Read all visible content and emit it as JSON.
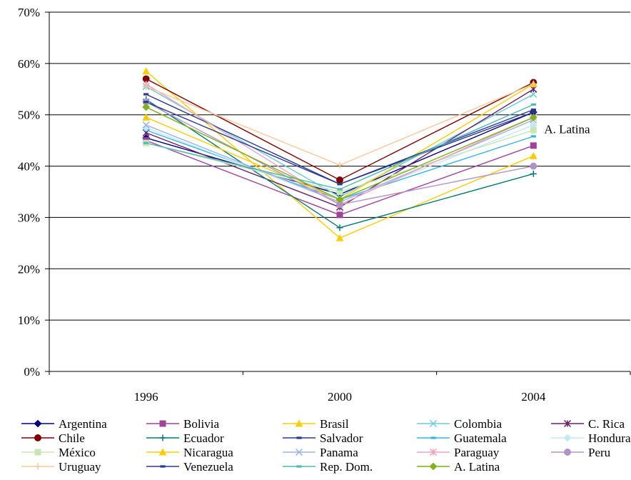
{
  "chart_data": {
    "type": "line",
    "categories": [
      "1996",
      "2000",
      "2004"
    ],
    "ylim": [
      0,
      70
    ],
    "yticks": [
      "0%",
      "10%",
      "20%",
      "30%",
      "40%",
      "50%",
      "60%",
      "70%"
    ],
    "grid": true,
    "legend_position": "bottom",
    "annotation": "A. Latina",
    "series": [
      {
        "name": "Argentina",
        "values": [
          45.5,
          34.5,
          50.5
        ],
        "color": "#000080",
        "marker": "diamond"
      },
      {
        "name": "Bolivia",
        "values": [
          45,
          30.5,
          44
        ],
        "color": "#a0449a",
        "marker": "square"
      },
      {
        "name": "Brasil",
        "values": [
          58.5,
          26,
          42
        ],
        "color": "#ffcc00",
        "marker": "triangle"
      },
      {
        "name": "Colombia",
        "values": [
          55.5,
          34,
          54
        ],
        "color": "#6ccbd9",
        "marker": "x"
      },
      {
        "name": "C. Rica",
        "values": [
          46.5,
          32,
          55
        ],
        "color": "#6a2167",
        "marker": "star"
      },
      {
        "name": "Chile",
        "values": [
          57,
          37.3,
          56.3
        ],
        "color": "#800000",
        "marker": "circle"
      },
      {
        "name": "Ecuador",
        "values": [
          53,
          28,
          38.5
        ],
        "color": "#007878",
        "marker": "plus"
      },
      {
        "name": "Salvador",
        "values": [
          54,
          36.5,
          50.5
        ],
        "color": "#2a3a8f",
        "marker": "dash"
      },
      {
        "name": "Guatemala",
        "values": [
          47,
          33.5,
          45.8
        ],
        "color": "#33b5e6",
        "marker": "dash"
      },
      {
        "name": "Honduras",
        "values": [
          47.5,
          33,
          48
        ],
        "color": "#c4e8f5",
        "marker": "diamond"
      },
      {
        "name": "México",
        "values": [
          44.5,
          35,
          47
        ],
        "color": "#c8e6b4",
        "marker": "square"
      },
      {
        "name": "Nicaragua",
        "values": [
          49.5,
          33.5,
          56
        ],
        "color": "#ffcc00",
        "marker": "triangle"
      },
      {
        "name": "Panama",
        "values": [
          48,
          33,
          49
        ],
        "color": "#9bb3e6",
        "marker": "x"
      },
      {
        "name": "Paraguay",
        "values": [
          56,
          32.5,
          49.5
        ],
        "color": "#f4a0c0",
        "marker": "star"
      },
      {
        "name": "Peru",
        "values": [
          52.5,
          32.5,
          40
        ],
        "color": "#b094c8",
        "marker": "circle"
      },
      {
        "name": "Uruguay",
        "values": [
          55.5,
          40.2,
          56
        ],
        "color": "#f9c89a",
        "marker": "plus"
      },
      {
        "name": "Venezuela",
        "values": [
          52.5,
          36.5,
          51
        ],
        "color": "#2a3a8f",
        "marker": "dash"
      },
      {
        "name": "Rep. Dom.",
        "values": [
          44.5,
          35.5,
          52
        ],
        "color": "#4fb8b8",
        "marker": "dash"
      },
      {
        "name": "A. Latina",
        "values": [
          51.5,
          33.5,
          49.5
        ],
        "color": "#7fb21c",
        "marker": "diamond"
      }
    ]
  }
}
